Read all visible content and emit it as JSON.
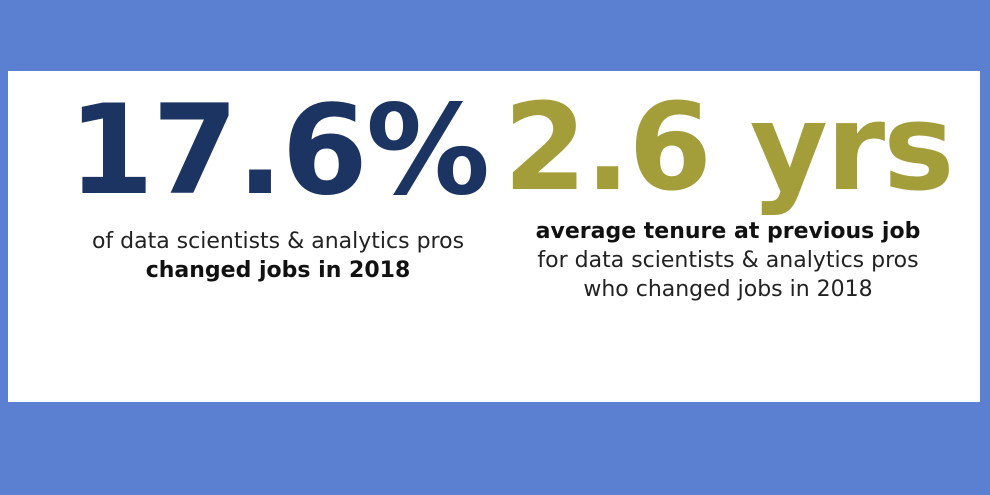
{
  "colors": {
    "background": "#5b80d2",
    "panel": "#ffffff",
    "stat1": "#1b3461",
    "stat2": "#a39e3a"
  },
  "stat1": {
    "value": "17.6%",
    "line1": "of data scientists & analytics pros",
    "line2": "changed jobs in 2018"
  },
  "stat2": {
    "value": "2.6 yrs",
    "line1": "average tenure at previous job",
    "line2": "for data scientists & analytics pros",
    "line3": "who changed jobs in 2018"
  }
}
